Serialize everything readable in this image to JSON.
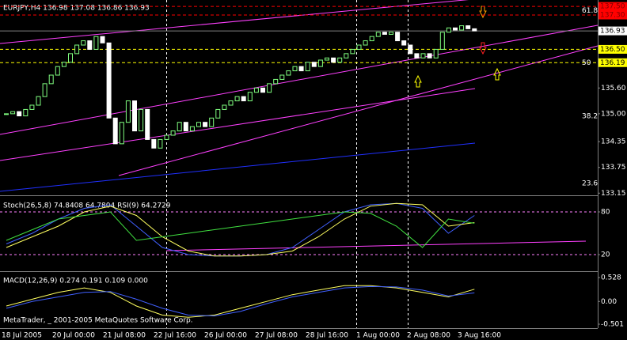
{
  "chart_data": {
    "type": "candlestick",
    "title": "EURJPY,H4 136.98 137.08 136.86 136.93",
    "closes": [
      135.0,
      135.05,
      134.95,
      135.1,
      135.2,
      135.4,
      135.7,
      135.9,
      136.1,
      136.2,
      136.4,
      136.6,
      136.7,
      136.5,
      136.8,
      136.65,
      134.9,
      134.3,
      134.8,
      135.3,
      134.6,
      135.1,
      134.4,
      134.2,
      134.4,
      134.5,
      134.6,
      134.8,
      134.6,
      134.7,
      134.8,
      134.7,
      134.9,
      135.1,
      135.2,
      135.3,
      135.4,
      135.3,
      135.5,
      135.6,
      135.5,
      135.7,
      135.8,
      135.9,
      136.0,
      136.1,
      136.0,
      136.2,
      136.1,
      136.25,
      136.3,
      136.2,
      136.3,
      136.4,
      136.5,
      136.6,
      136.7,
      136.8,
      136.9,
      136.85,
      136.9,
      136.7,
      136.6,
      136.4,
      136.3,
      136.4,
      136.3,
      136.5,
      136.9,
      137.0,
      136.95,
      137.05,
      136.98,
      136.93
    ],
    "up_color": "#80ff80",
    "down_color": "#ffffff",
    "ylim": [
      133.1,
      137.65
    ],
    "yticks": [
      {
        "value": 135.6,
        "label": "135.60"
      },
      {
        "value": 135.0,
        "label": "135.00"
      },
      {
        "value": 134.35,
        "label": "134.35"
      },
      {
        "value": 133.75,
        "label": "133.75"
      },
      {
        "value": 133.15,
        "label": "133.15"
      }
    ],
    "price_levels": [
      {
        "value": 137.5,
        "label": "137.50",
        "color": "#ff0000",
        "text_color": "#800000"
      },
      {
        "value": 137.3,
        "label": "137.30",
        "color": "#ff0000",
        "text_color": "#800000"
      },
      {
        "value": 136.93,
        "label": "136.93",
        "color": "#ffffff",
        "text_color": "#000000"
      },
      {
        "value": 136.5,
        "label": "136.50",
        "color": "#ffff00",
        "text_color": "#000000"
      },
      {
        "value": 136.19,
        "label": "136.19",
        "color": "#ffff00",
        "text_color": "#000000"
      }
    ],
    "fib_levels": [
      {
        "ratio": 61.8,
        "price": 137.4
      },
      {
        "ratio": 50.0,
        "price": 136.19
      },
      {
        "ratio": 38.2,
        "price": 134.94
      },
      {
        "ratio": 23.6,
        "price": 133.38
      }
    ],
    "indicators": [
      {
        "title": "Stoch(26,5,8) 74.8408 64.7804 RSI(9) 64.2729",
        "ylim": [
          0,
          100
        ],
        "yticks": [
          20,
          80
        ],
        "series": [
          {
            "name": "Stoch",
            "color": "#4060ff",
            "values": [
              35,
              50,
              70,
              85,
              90,
              60,
              30,
              20,
              18,
              18,
              20,
              30,
              55,
              80,
              90,
              92,
              85,
              50,
              75
            ]
          },
          {
            "name": "Signal",
            "color": "#ffff60",
            "values": [
              30,
              45,
              60,
              80,
              88,
              75,
              45,
              25,
              18,
              18,
              20,
              25,
              45,
              70,
              88,
              92,
              90,
              60,
              65
            ]
          },
          {
            "name": "RSI",
            "color": "#40e040",
            "values": [
              40,
              55,
              70,
              75,
              80,
              40,
              45,
              50,
              55,
              60,
              65,
              70,
              75,
              80,
              78,
              60,
              30,
              70,
              64
            ]
          }
        ]
      },
      {
        "title": "MACD(12,26,9) 0.274 0.191 0.109 0.000",
        "ylim": [
          -0.501,
          0.528
        ],
        "yticks": [
          0.528,
          {
            "value": 0,
            "label": "0.00"
          },
          -0.501
        ],
        "series": [
          {
            "name": "MACD",
            "color": "#ffff60",
            "values": [
              -0.1,
              0.05,
              0.2,
              0.3,
              0.2,
              -0.1,
              -0.3,
              -0.35,
              -0.3,
              -0.15,
              0.0,
              0.15,
              0.25,
              0.35,
              0.35,
              0.3,
              0.2,
              0.1,
              0.27
            ]
          },
          {
            "name": "Signal",
            "color": "#4060ff",
            "values": [
              -0.15,
              0.0,
              0.1,
              0.2,
              0.22,
              0.05,
              -0.15,
              -0.3,
              -0.32,
              -0.22,
              -0.05,
              0.1,
              0.2,
              0.3,
              0.33,
              0.32,
              0.25,
              0.12,
              0.19
            ]
          }
        ]
      }
    ],
    "x_labels": [
      "18 Jul 2005",
      "20 Jul 00:00",
      "21 Jul 08:00",
      "22 Jul 16:00",
      "26 Jul 00:00",
      "27 Jul 08:00",
      "28 Jul 16:00",
      "1 Aug 00:00",
      "2 Aug 08:00",
      "3 Aug 16:00"
    ],
    "copyright": "MetaTrader, _ 2001-2005 MetaQuotes Software Corp."
  }
}
